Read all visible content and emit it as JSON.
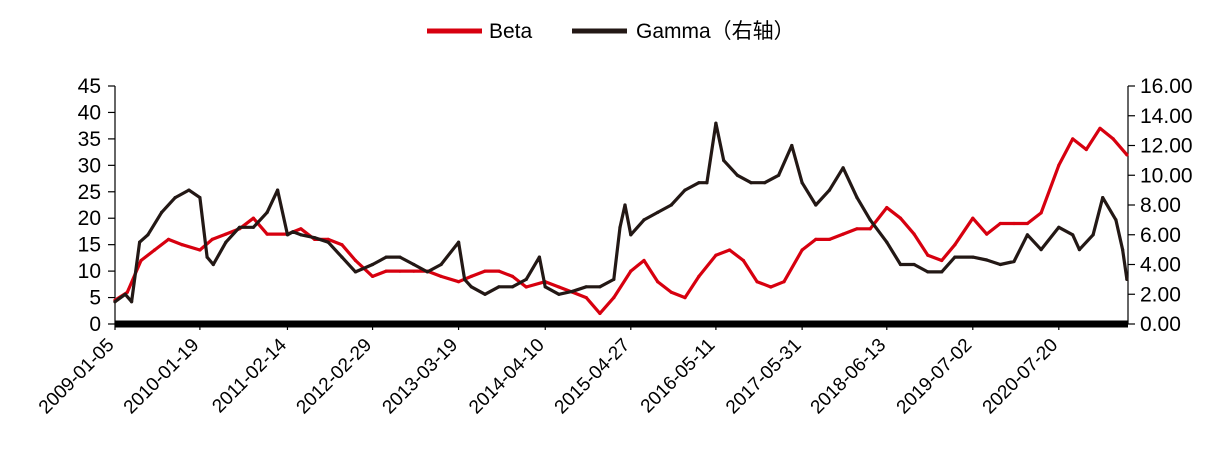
{
  "chart_data": {
    "type": "line",
    "title": "",
    "legend": {
      "placement": "top-center",
      "items": [
        {
          "name": "Beta",
          "color": "#d7000f"
        },
        {
          "name": "Gamma（右轴）",
          "color": "#231815"
        }
      ]
    },
    "x_ticks": [
      "2009-01-05",
      "2010-01-19",
      "2011-02-14",
      "2012-02-29",
      "2013-03-19",
      "2014-04-10",
      "2015-04-27",
      "2016-05-11",
      "2017-05-31",
      "2018-06-13",
      "2019-07-02",
      "2020-07-20"
    ],
    "left_axis": {
      "min": 0,
      "max": 45,
      "ticks": [
        "0",
        "5",
        "10",
        "15",
        "20",
        "25",
        "30",
        "35",
        "40",
        "45"
      ]
    },
    "right_axis": {
      "min": 0,
      "max": 16,
      "ticks": [
        "0.00",
        "2.00",
        "4.00",
        "6.00",
        "8.00",
        "10.00",
        "12.00",
        "14.00",
        "16.00"
      ]
    },
    "grid": false,
    "series": [
      {
        "name": "Beta",
        "axis": "left",
        "color": "#d7000f",
        "x": [
          "2009-01-05",
          "2009-03-01",
          "2009-05-01",
          "2009-07-01",
          "2009-09-01",
          "2009-11-01",
          "2010-01-19",
          "2010-03-15",
          "2010-05-15",
          "2010-07-15",
          "2010-09-15",
          "2010-11-15",
          "2011-02-14",
          "2011-04-15",
          "2011-06-15",
          "2011-08-15",
          "2011-10-15",
          "2011-12-15",
          "2012-02-29",
          "2012-04-30",
          "2012-06-30",
          "2012-08-31",
          "2012-10-31",
          "2012-12-31",
          "2013-03-19",
          "2013-05-15",
          "2013-07-15",
          "2013-09-15",
          "2013-11-15",
          "2014-01-15",
          "2014-04-10",
          "2014-06-10",
          "2014-08-10",
          "2014-10-10",
          "2014-12-10",
          "2015-02-10",
          "2015-04-27",
          "2015-06-25",
          "2015-08-25",
          "2015-10-25",
          "2015-12-25",
          "2016-02-25",
          "2016-05-11",
          "2016-07-11",
          "2016-09-11",
          "2016-11-11",
          "2017-01-11",
          "2017-03-11",
          "2017-05-31",
          "2017-07-31",
          "2017-09-30",
          "2017-11-30",
          "2018-01-31",
          "2018-03-31",
          "2018-06-13",
          "2018-08-13",
          "2018-10-13",
          "2018-12-13",
          "2019-02-13",
          "2019-04-13",
          "2019-07-02",
          "2019-09-02",
          "2019-11-02",
          "2020-01-02",
          "2020-03-02",
          "2020-05-02",
          "2020-07-20",
          "2020-09-20",
          "2020-11-20",
          "2021-01-20",
          "2021-03-20",
          "2021-05-20"
        ],
        "values": [
          4.5,
          6,
          12,
          14,
          16,
          15,
          14,
          16,
          17,
          18,
          20,
          17,
          17,
          18,
          16,
          16,
          15,
          12,
          9,
          10,
          10,
          10,
          10,
          9,
          8,
          9,
          10,
          10,
          9,
          7,
          8,
          7,
          6,
          5,
          2,
          5,
          10,
          12,
          8,
          6,
          5,
          9,
          13,
          14,
          12,
          8,
          7,
          8,
          14,
          16,
          16,
          17,
          18,
          18,
          22,
          20,
          17,
          13,
          12,
          15,
          20,
          17,
          19,
          19,
          19,
          21,
          30,
          35,
          33,
          37,
          35,
          32
        ]
      },
      {
        "name": "Gamma（右轴）",
        "axis": "right",
        "color": "#231815",
        "x": [
          "2009-01-05",
          "2009-02-20",
          "2009-03-20",
          "2009-04-25",
          "2009-06-01",
          "2009-08-01",
          "2009-10-01",
          "2009-12-01",
          "2010-01-19",
          "2010-02-20",
          "2010-03-20",
          "2010-05-15",
          "2010-07-15",
          "2010-09-15",
          "2010-11-15",
          "2011-01-01",
          "2011-02-14",
          "2011-03-10",
          "2011-04-15",
          "2011-06-15",
          "2011-08-15",
          "2011-10-15",
          "2011-12-15",
          "2012-02-29",
          "2012-04-30",
          "2012-06-30",
          "2012-08-31",
          "2012-10-31",
          "2012-12-31",
          "2013-03-19",
          "2013-04-15",
          "2013-05-15",
          "2013-07-15",
          "2013-09-15",
          "2013-11-15",
          "2014-01-15",
          "2014-03-15",
          "2014-04-10",
          "2014-06-10",
          "2014-08-10",
          "2014-10-10",
          "2014-12-10",
          "2015-02-10",
          "2015-03-10",
          "2015-04-01",
          "2015-04-27",
          "2015-06-25",
          "2015-08-25",
          "2015-10-25",
          "2015-12-25",
          "2016-02-25",
          "2016-04-01",
          "2016-05-11",
          "2016-06-15",
          "2016-08-15",
          "2016-10-15",
          "2016-12-15",
          "2017-02-15",
          "2017-04-15",
          "2017-05-31",
          "2017-07-31",
          "2017-09-30",
          "2017-11-30",
          "2018-01-31",
          "2018-03-31",
          "2018-06-13",
          "2018-08-13",
          "2018-10-13",
          "2018-12-13",
          "2019-02-13",
          "2019-04-13",
          "2019-07-02",
          "2019-09-02",
          "2019-11-02",
          "2020-01-02",
          "2020-03-02",
          "2020-05-02",
          "2020-07-20",
          "2020-09-20",
          "2020-10-20",
          "2020-12-20",
          "2021-02-01",
          "2021-04-01",
          "2021-05-01",
          "2021-05-20"
        ],
        "values": [
          1.5,
          2.0,
          1.5,
          5.5,
          6.0,
          7.5,
          8.5,
          9.0,
          8.5,
          4.5,
          4.0,
          5.5,
          6.5,
          6.5,
          7.5,
          9.0,
          6.0,
          6.2,
          6.0,
          5.8,
          5.5,
          4.5,
          3.5,
          4.0,
          4.5,
          4.5,
          4.0,
          3.5,
          4.0,
          5.5,
          3.0,
          2.5,
          2.0,
          2.5,
          2.5,
          3.0,
          4.5,
          2.5,
          2.0,
          2.2,
          2.5,
          2.5,
          3.0,
          6.5,
          8.0,
          6.0,
          7.0,
          7.5,
          8.0,
          9.0,
          9.5,
          9.5,
          13.5,
          11.0,
          10.0,
          9.5,
          9.5,
          10.0,
          12.0,
          9.5,
          8.0,
          9.0,
          10.5,
          8.5,
          7.0,
          5.5,
          4.0,
          4.0,
          3.5,
          3.5,
          4.5,
          4.5,
          4.3,
          4.0,
          4.2,
          6.0,
          5.0,
          6.5,
          6.0,
          5.0,
          6.0,
          8.5,
          7.0,
          5.0,
          3.0
        ]
      }
    ]
  }
}
